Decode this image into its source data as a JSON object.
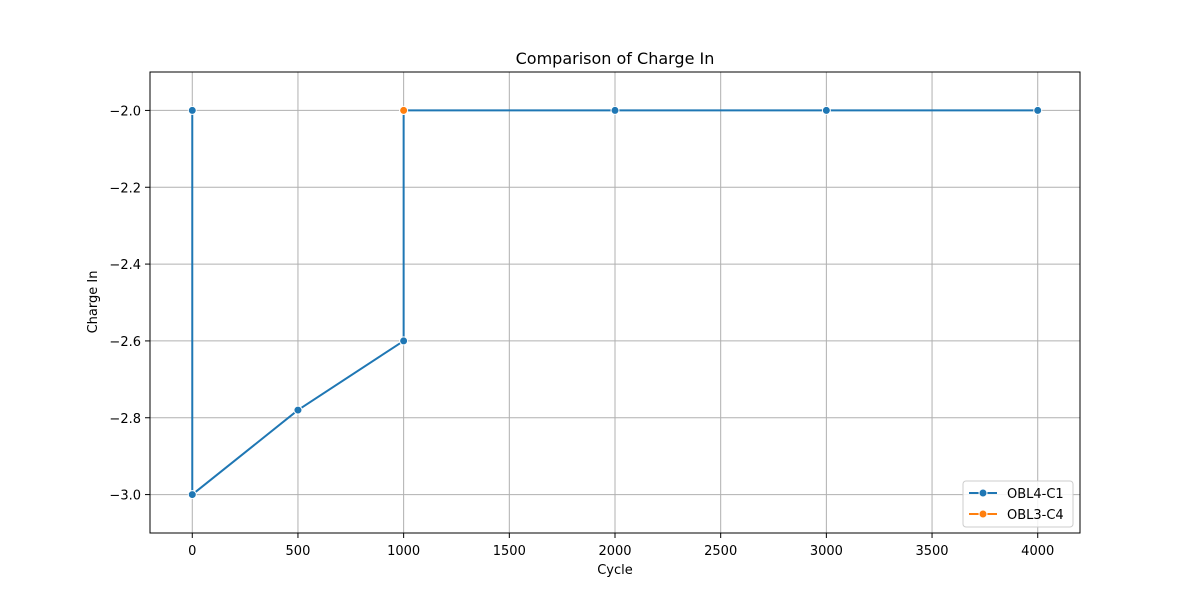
{
  "chart_data": {
    "type": "line",
    "title": "Comparison of Charge In",
    "xlabel": "Cycle",
    "ylabel": "Charge In",
    "xlim": [
      -200,
      4200
    ],
    "ylim": [
      -3.1,
      -1.9
    ],
    "xticks": [
      0,
      500,
      1000,
      1500,
      2000,
      2500,
      3000,
      3500,
      4000
    ],
    "yticks": [
      -3.0,
      -2.8,
      -2.6,
      -2.4,
      -2.2,
      -2.0
    ],
    "xtick_labels": [
      "0",
      "500",
      "1000",
      "1500",
      "2000",
      "2500",
      "3000",
      "3500",
      "4000"
    ],
    "ytick_labels": [
      "−3.0",
      "−2.8",
      "−2.6",
      "−2.4",
      "−2.2",
      "−2.0"
    ],
    "grid": true,
    "legend_position": "bottom-right",
    "series": [
      {
        "name": "OBL4-C1",
        "color": "#1f77b4",
        "marker": "circle",
        "points": [
          {
            "x": 0,
            "y": -2.0
          },
          {
            "x": 0,
            "y": -3.0
          },
          {
            "x": 500,
            "y": -2.78
          },
          {
            "x": 1000,
            "y": -2.6
          },
          {
            "x": 1000,
            "y": -2.0
          },
          {
            "x": 2000,
            "y": -2.0
          },
          {
            "x": 3000,
            "y": -2.0
          },
          {
            "x": 4000,
            "y": -2.0
          }
        ]
      },
      {
        "name": "OBL3-C4",
        "color": "#ff7f0e",
        "marker": "circle",
        "points": [
          {
            "x": 1000,
            "y": -2.0
          }
        ]
      }
    ]
  }
}
